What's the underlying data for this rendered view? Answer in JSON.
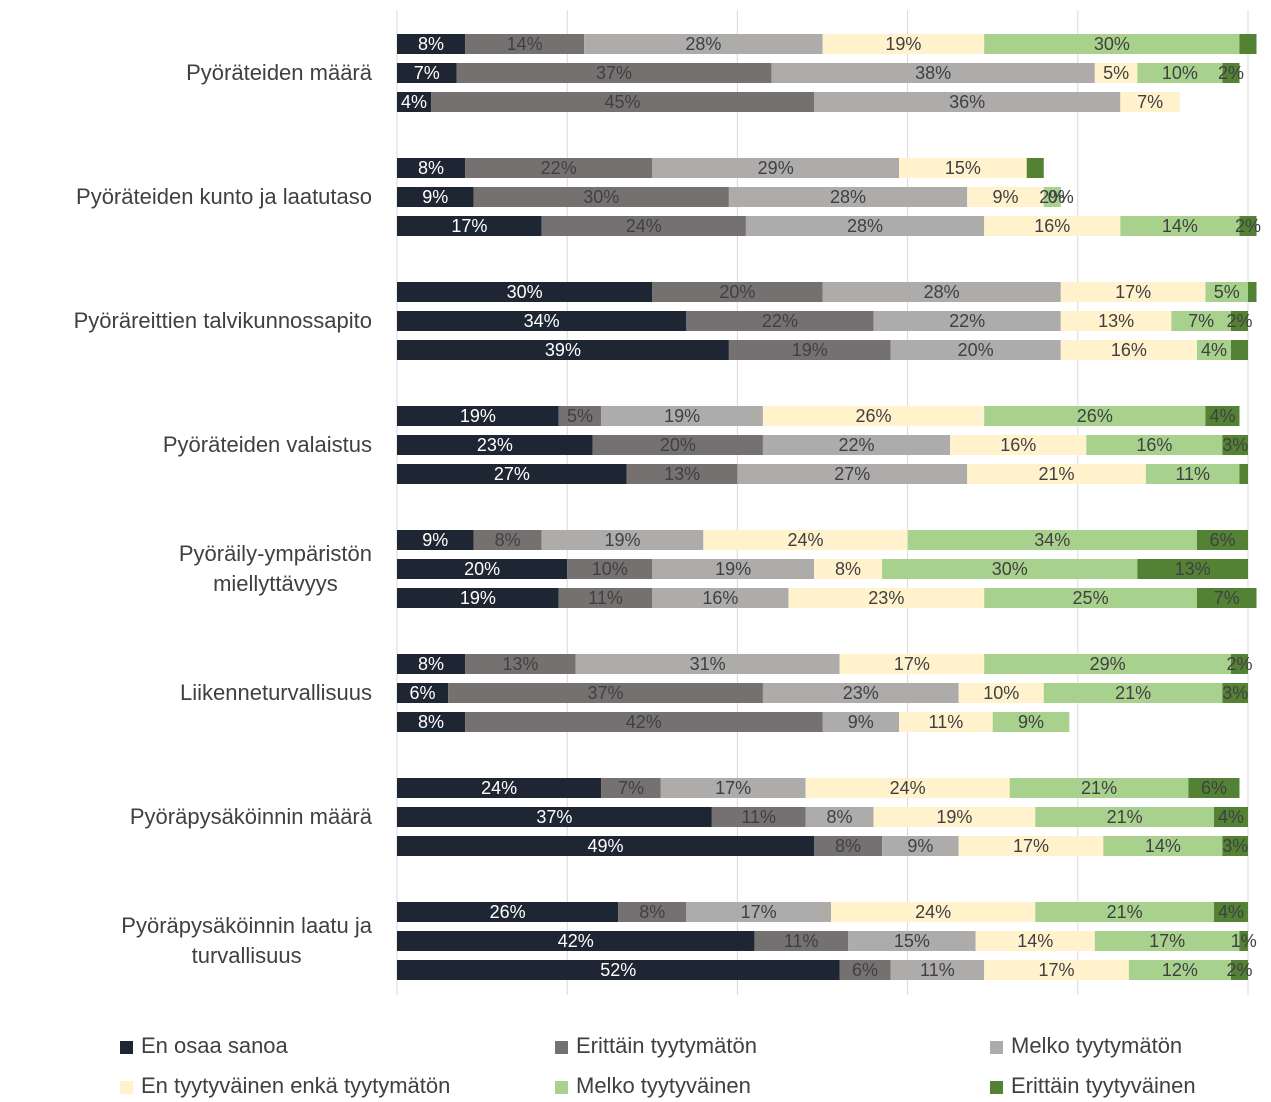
{
  "chart_data": {
    "type": "stacked_barh",
    "categories": [
      null,
      "Pyöräteiden määrä",
      null,
      null,
      "Pyöräteiden kunto ja laatutaso",
      null,
      null,
      "Pyöräreittien talvikunnossapito",
      null,
      null,
      "Pyöräteiden valaistus",
      null,
      null,
      "Pyöräily-ympäristön\nmiellyttävyys",
      null,
      null,
      "Liikenneturvallisuus",
      null,
      null,
      "Pyöräpysäköinnin määrä",
      null,
      null,
      "Pyöräpysäköinnin laatu ja\nturvallisuus",
      null
    ],
    "xlim": [
      0,
      100
    ],
    "xticks": [
      0,
      20,
      40,
      60,
      80,
      100
    ],
    "grid": true,
    "series": [
      {
        "name": "En osaa sanoa",
        "color": "#1f2633",
        "values": [
          8,
          7,
          4,
          8,
          9,
          17,
          30,
          34,
          39,
          19,
          23,
          27,
          9,
          20,
          19,
          8,
          6,
          8,
          24,
          37,
          49,
          26,
          42,
          52
        ],
        "value_labels": [
          "8%",
          "7%",
          "4%",
          "8%",
          "9%",
          "17%",
          "30%",
          "34%",
          "39%",
          "19%",
          "23%",
          "27%",
          "9%",
          "20%",
          "19%",
          "8%",
          "6%",
          "8%",
          "24%",
          "37%",
          "49%",
          "26%",
          "42%",
          "52%"
        ]
      },
      {
        "name": "Erittäin tyytymätön",
        "color": "#767171",
        "values": [
          14,
          37,
          45,
          22,
          30,
          24,
          20,
          22,
          19,
          5,
          20,
          13,
          8,
          10,
          11,
          13,
          37,
          42,
          7,
          11,
          8,
          8,
          11,
          6
        ],
        "value_labels": [
          "14%",
          "37%",
          "45%",
          "22%",
          "30%",
          "24%",
          "20%",
          "22%",
          "19%",
          "5%",
          "20%",
          "13%",
          "8%",
          "10%",
          "11%",
          "13%",
          "37%",
          "42%",
          "7%",
          "11%",
          "8%",
          "8%",
          "11%",
          "6%"
        ]
      },
      {
        "name": "Melko tyytymätön",
        "color": "#aeabab",
        "values": [
          28,
          38,
          36,
          29,
          28,
          28,
          28,
          22,
          20,
          19,
          22,
          27,
          19,
          19,
          16,
          31,
          23,
          9,
          17,
          8,
          9,
          17,
          15,
          11
        ],
        "value_labels": [
          "28%",
          "38%",
          "36%",
          "29%",
          "28%",
          "28%",
          "28%",
          "22%",
          "20%",
          "19%",
          "22%",
          "27%",
          "19%",
          "19%",
          "16%",
          "31%",
          "23%",
          "9%",
          "17%",
          "8%",
          "9%",
          "17%",
          "15%",
          "11%"
        ]
      },
      {
        "name": "En tyytyväinen enkä tyytymätön",
        "color": "#fff2cc",
        "values": [
          19,
          5,
          7,
          15,
          9,
          16,
          17,
          13,
          16,
          26,
          16,
          21,
          24,
          8,
          23,
          17,
          10,
          11,
          24,
          19,
          17,
          24,
          14,
          17
        ],
        "value_labels": [
          "19%",
          "5%",
          "7%",
          "15%",
          "9%",
          "16%",
          "17%",
          "13%",
          "16%",
          "26%",
          "16%",
          "21%",
          "24%",
          "8%",
          "23%",
          "17%",
          "10%",
          "11%",
          "24%",
          "19%",
          "17%",
          "24%",
          "14%",
          "17%"
        ]
      },
      {
        "name": "Melko tyytyväinen",
        "color": "#a9d18e",
        "values": [
          30,
          10,
          null,
          null,
          2,
          14,
          5,
          7,
          4,
          26,
          16,
          11,
          34,
          30,
          25,
          29,
          21,
          9,
          21,
          21,
          14,
          21,
          17,
          12
        ],
        "value_labels": [
          "30%",
          "10%",
          null,
          null,
          "2%",
          "14%",
          "5%",
          "7%",
          "4%",
          "26%",
          "16%",
          "11%",
          "34%",
          "30%",
          "25%",
          "29%",
          "21%",
          "9%",
          "21%",
          "21%",
          "14%",
          "21%",
          "17%",
          "12%"
        ]
      },
      {
        "name": "Erittäin tyytyväinen",
        "color": "#548235",
        "values": [
          2,
          2,
          null,
          2,
          0,
          2,
          1,
          2,
          2,
          4,
          3,
          1,
          6,
          13,
          7,
          2,
          3,
          null,
          6,
          4,
          3,
          4,
          1,
          2
        ],
        "value_labels": [
          null,
          "2%",
          null,
          null,
          "0%",
          "2%",
          null,
          "2%",
          null,
          "4%",
          "3%",
          null,
          "6%",
          "13%",
          "7%",
          "2%",
          "3%",
          null,
          "6%",
          "4%",
          "3%",
          "4%",
          "1%",
          "2%"
        ]
      }
    ]
  }
}
